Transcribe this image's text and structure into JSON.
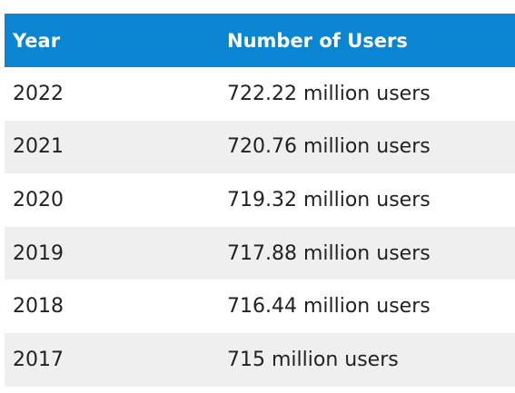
{
  "table": {
    "headers": {
      "year": "Year",
      "users": "Number of Users"
    },
    "rows": [
      {
        "year": "2022",
        "users": "722.22 million users"
      },
      {
        "year": "2021",
        "users": "720.76 million users"
      },
      {
        "year": "2020",
        "users": "719.32 million users"
      },
      {
        "year": "2019",
        "users": "717.88 million users"
      },
      {
        "year": "2018",
        "users": "716.44 million users"
      },
      {
        "year": "2017",
        "users": "715 million users"
      }
    ]
  },
  "colors": {
    "header_background": "#0a85d1",
    "header_text": "#ffffff",
    "alt_row_background": "#efefef",
    "body_text": "#222222"
  }
}
